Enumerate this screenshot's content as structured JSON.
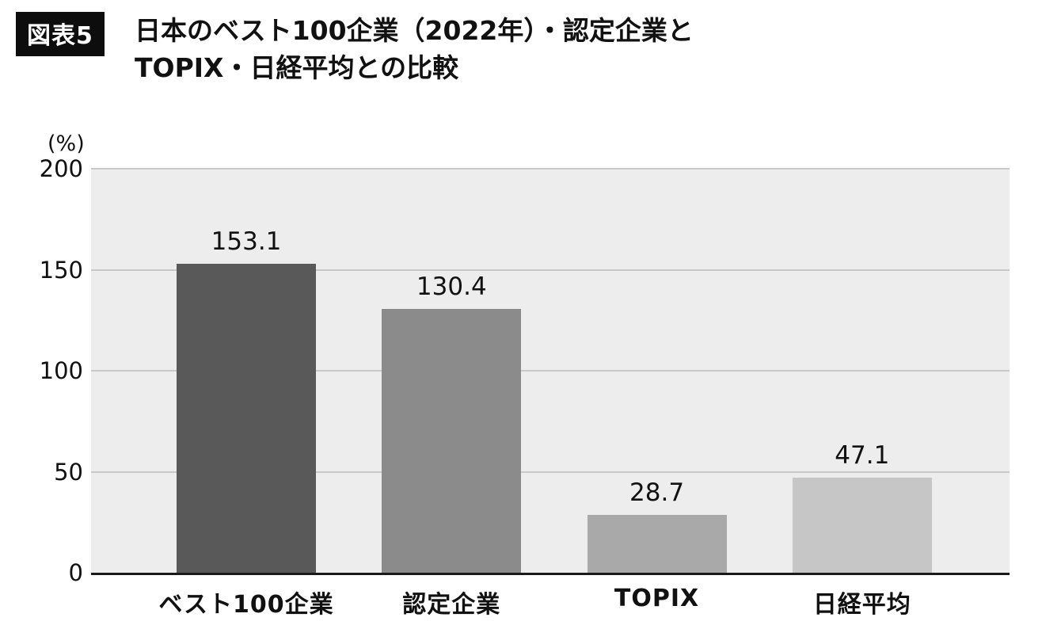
{
  "header": {
    "badge": "図表5",
    "title_line1": "日本のベスト100企業（2022年）・認定企業と",
    "title_line2": "TOPIX・日経平均との比較"
  },
  "chart_data": {
    "type": "bar",
    "title": "日本のベスト100企業（2022年）・認定企業とTOPIX・日経平均との比較",
    "unit_label": "(%)",
    "categories": [
      "ベスト100企業",
      "認定企業",
      "TOPIX",
      "日経平均"
    ],
    "values": [
      153.1,
      130.4,
      28.7,
      47.1
    ],
    "value_labels": [
      "153.1",
      "130.4",
      "28.7",
      "47.1"
    ],
    "bar_colors": [
      "#595959",
      "#8b8b8b",
      "#a9a9a9",
      "#c6c6c6"
    ],
    "xlabel": "",
    "ylabel": "(%)",
    "ylim": [
      0,
      200
    ],
    "yticks": [
      0,
      50,
      100,
      150,
      200
    ],
    "grid": true,
    "legend": "none",
    "plot_background": "#ededed",
    "gridline_color": "#c9c9c9",
    "axis_line_color": "#1a1a1a"
  }
}
